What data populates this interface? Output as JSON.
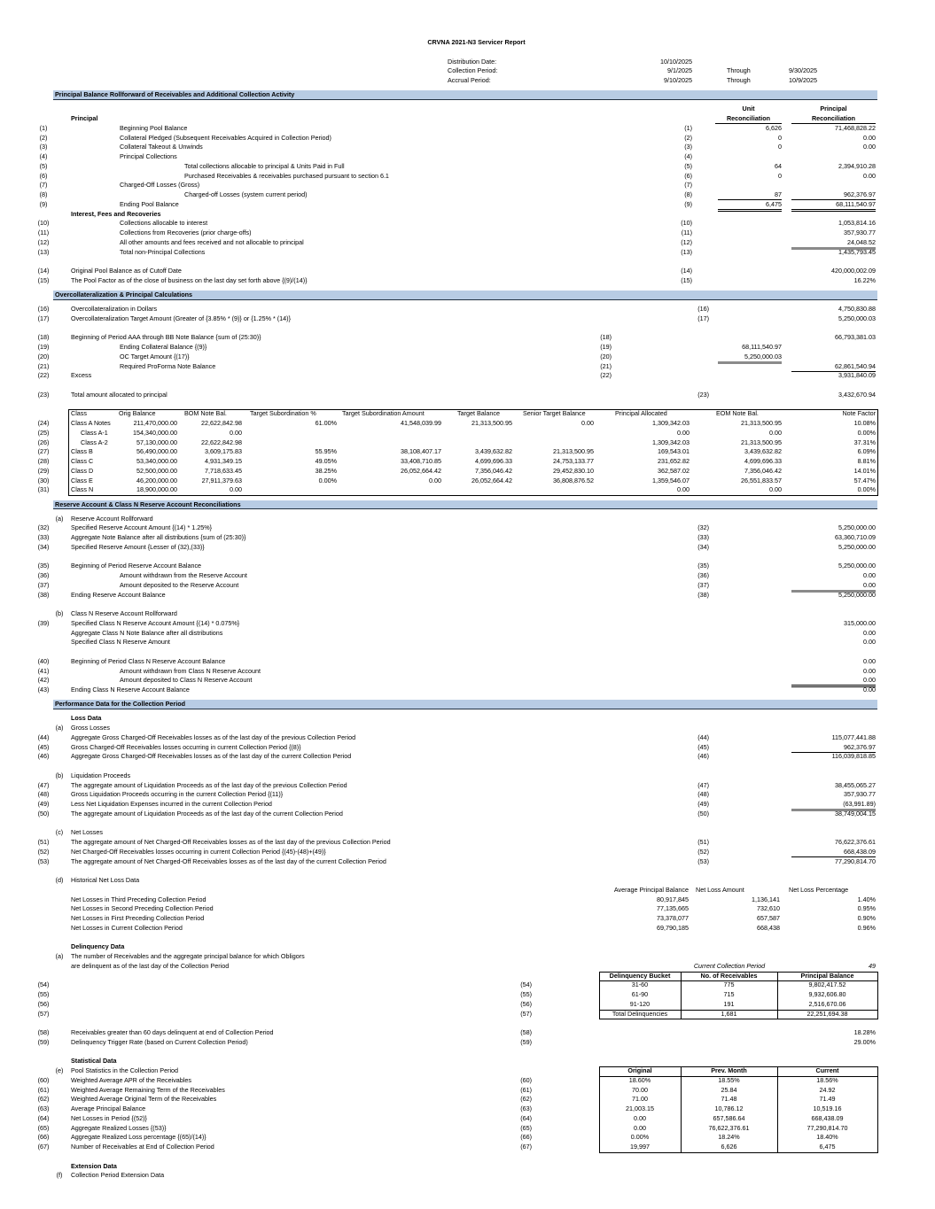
{
  "report_title": "CRVNA 2021-N3 Servicer Report",
  "periods": [
    {
      "label": "Distribution Date:",
      "from": "10/10/2025",
      "through": "",
      "to": ""
    },
    {
      "label": "Collection Period:",
      "from": "9/1/2025",
      "through": "Through",
      "to": "9/30/2025"
    },
    {
      "label": "Accrual Period:",
      "from": "9/10/2025",
      "through": "Through",
      "to": "10/9/2025"
    }
  ],
  "principal_rollforward": {
    "title": "Principal Balance Rollforward of Receivables and Additional Collection Activity",
    "unit_header": [
      "Unit",
      "Reconciliation"
    ],
    "principal_header": [
      "Principal",
      "Reconciliation"
    ],
    "principal_label": "Principal",
    "rows": [
      {
        "n": "(1)",
        "label": "Beginning Pool Balance",
        "ref": "(1)",
        "unit": "6,626",
        "value": "71,468,828.22"
      },
      {
        "n": "(2)",
        "label": "Collateral Pledged (Subsequent Receivables Acquired in Collection Period)",
        "ref": "(2)",
        "unit": "0",
        "value": "0.00"
      },
      {
        "n": "(3)",
        "label": "Collateral Takeout & Unwinds",
        "ref": "(3)",
        "unit": "0",
        "value": "0.00"
      },
      {
        "n": "(4)",
        "label": "Principal Collections",
        "ref": "(4)",
        "unit": "",
        "value": ""
      },
      {
        "n": "(5)",
        "label": "Total collections allocable to principal & Units Paid in Full",
        "ref": "(5)",
        "unit": "64",
        "value": "2,394,910.28"
      },
      {
        "n": "(6)",
        "label": "Purchased Receivables & receivables purchased pursuant to section 6.1",
        "ref": "(6)",
        "unit": "0",
        "value": "0.00"
      },
      {
        "n": "(7)",
        "label": "Charged-Off Losses (Gross)",
        "ref": "(7)",
        "unit": "",
        "value": ""
      },
      {
        "n": "(8)",
        "label": "Charged-off Losses (system current period)",
        "ref": "(8)",
        "unit": "87",
        "value": "962,376.97"
      },
      {
        "n": "(9)",
        "label": "Ending Pool Balance",
        "ref": "(9)",
        "unit": "6,475",
        "value": "68,111,540.97"
      }
    ],
    "interest_label": "Interest, Fees and Recoveries",
    "interest_rows": [
      {
        "n": "(10)",
        "label": "Collections allocable to interest",
        "ref": "(10)",
        "value": "1,053,814.16"
      },
      {
        "n": "(11)",
        "label": "Collections from Recoveries (prior charge-offs)",
        "ref": "(11)",
        "value": "357,930.77"
      },
      {
        "n": "(12)",
        "label": "All other amounts and fees received and not allocable to principal",
        "ref": "(12)",
        "value": "24,048.52"
      },
      {
        "n": "(13)",
        "label": "Total non-Principal Collections",
        "ref": "(13)",
        "value": "1,435,793.45"
      }
    ],
    "pool_rows": [
      {
        "n": "(14)",
        "label": "Original Pool Balance as of Cutoff Date",
        "ref": "(14)",
        "value": "420,000,002.09"
      },
      {
        "n": "(15)",
        "label": "The Pool Factor as of the close of business on the last day set forth above {(9)/(14)}",
        "ref": "(15)",
        "value": "16.22%"
      }
    ]
  },
  "overcollateralization": {
    "title": "Overcollateralization & Principal Calculations",
    "rows": [
      {
        "n": "(16)",
        "label": "Overcollateralization in Dollars",
        "ref": "(16)",
        "value": "4,750,830.88"
      },
      {
        "n": "(17)",
        "label": "Overcollateralization Target Amount (Greater of {3.85% * (9)} or {1.25% * (14)}",
        "ref": "(17)",
        "value": "5,250,000.03"
      }
    ],
    "note_rows": [
      {
        "n": "(18)",
        "label": "Beginning of Period AAA through BB Note Balance {sum of (25:30)}",
        "ref": "(18)",
        "value": "66,793,381.03"
      },
      {
        "n": "(19)",
        "label": "Ending Collateral Balance {(9)}",
        "ref": "(19)",
        "unit": "68,111,540.97"
      },
      {
        "n": "(20)",
        "label": "OC Target Amount {(17)}",
        "ref": "(20)",
        "unit": "5,250,000.03"
      },
      {
        "n": "(21)",
        "label": "Required ProForma Note Balance",
        "ref": "(21)",
        "value": "62,861,540.94"
      },
      {
        "n": "(22)",
        "label": "Excess",
        "ref": "(22)",
        "value": "3,931,840.09"
      }
    ],
    "total_row": {
      "n": "(23)",
      "label": "Total amount allocated to principal",
      "ref": "(23)",
      "value": "3,432,670.94"
    },
    "class_table": {
      "headers": [
        "Class",
        "Orig Balance",
        "BOM Note Bal.",
        "Target Subordination %",
        "Target Subordination Amount",
        "Target Balance",
        "Senior Target Balance",
        "Principal Allocated",
        "EOM Note Bal.",
        "Note Factor"
      ],
      "rows": [
        {
          "n": "(24)",
          "cells": [
            "Class A Notes",
            "211,470,000.00",
            "22,622,842.98",
            "61.00%",
            "41,548,039.99",
            "21,313,500.95",
            "0.00",
            "1,309,342.03",
            "21,313,500.95",
            "10.08%"
          ]
        },
        {
          "n": "(25)",
          "cells": [
            "Class A-1",
            "154,340,000.00",
            "0.00",
            "",
            "",
            "",
            "",
            "0.00",
            "0.00",
            "0.00%"
          ]
        },
        {
          "n": "(26)",
          "cells": [
            "Class A-2",
            "57,130,000.00",
            "22,622,842.98",
            "",
            "",
            "",
            "",
            "1,309,342.03",
            "21,313,500.95",
            "37.31%"
          ]
        },
        {
          "n": "(27)",
          "cells": [
            "Class B",
            "56,490,000.00",
            "3,609,175.83",
            "55.95%",
            "38,108,407.17",
            "3,439,632.82",
            "21,313,500.95",
            "169,543.01",
            "3,439,632.82",
            "6.09%"
          ]
        },
        {
          "n": "(28)",
          "cells": [
            "Class C",
            "53,340,000.00",
            "4,931,349.15",
            "49.05%",
            "33,408,710.85",
            "4,699,696.33",
            "24,753,133.77",
            "231,652.82",
            "4,699,696.33",
            "8.81%"
          ]
        },
        {
          "n": "(29)",
          "cells": [
            "Class D",
            "52,500,000.00",
            "7,718,633.45",
            "38.25%",
            "26,052,664.42",
            "7,356,046.42",
            "29,452,830.10",
            "362,587.02",
            "7,356,046.42",
            "14.01%"
          ]
        },
        {
          "n": "(30)",
          "cells": [
            "Class E",
            "46,200,000.00",
            "27,911,379.63",
            "0.00%",
            "0.00",
            "26,052,664.42",
            "36,808,876.52",
            "1,359,546.07",
            "26,551,833.57",
            "57.47%"
          ]
        },
        {
          "n": "(31)",
          "cells": [
            "Class N",
            "18,900,000.00",
            "0.00",
            "",
            "",
            "",
            "",
            "0.00",
            "0.00",
            "0.00%"
          ]
        }
      ]
    }
  },
  "reserve": {
    "title": "Reserve Account & Class N Reserve Account Reconciliations",
    "a_letter": "(a)",
    "a_title": "Reserve Account Rollforward",
    "a_rows": [
      {
        "n": "(32)",
        "label": "Specified Reserve Account Amount {(14) * 1.25%}",
        "ref": "(32)",
        "value": "5,250,000.00"
      },
      {
        "n": "(33)",
        "label": "Aggregate Note Balance after all distributions {sum of (25:30)}",
        "ref": "(33)",
        "value": "63,360,710.09"
      },
      {
        "n": "(34)",
        "label": "Specified Reserve Amount {Lesser of (32),(33)}",
        "ref": "(34)",
        "value": "5,250,000.00"
      }
    ],
    "a_balance_rows": [
      {
        "n": "(35)",
        "label": "Beginning of Period Reserve Account Balance",
        "ref": "(35)",
        "value": "5,250,000.00"
      },
      {
        "n": "(36)",
        "label": "Amount withdrawn from the Reserve Account",
        "ref": "(36)",
        "value": "0.00"
      },
      {
        "n": "(37)",
        "label": "Amount deposited to the Reserve Account",
        "ref": "(37)",
        "value": "0.00"
      },
      {
        "n": "(38)",
        "label": "Ending Reserve Account Balance",
        "ref": "(38)",
        "value": "5,250,000.00"
      }
    ],
    "b_letter": "(b)",
    "b_title": "Class N Reserve Account Rollforward",
    "b_rows": [
      {
        "n": "(39)",
        "label": "Specified Class N Reserve Account Amount {(14) * 0.075%}",
        "value": "315,000.00"
      },
      {
        "n": "",
        "label": "Aggregate Class N Note Balance after all distributions",
        "value": "0.00"
      },
      {
        "n": "",
        "label": "Specified Class N Reserve Amount",
        "value": "0.00"
      }
    ],
    "b_balance_rows": [
      {
        "n": "(40)",
        "label": "Beginning of Period Class N Reserve Account Balance",
        "value": "0.00"
      },
      {
        "n": "(41)",
        "label": "Amount withdrawn from Class N Reserve Account",
        "value": "0.00"
      },
      {
        "n": "(42)",
        "label": "Amount deposited to Class N Reserve Account",
        "value": "0.00"
      },
      {
        "n": "(43)",
        "label": "Ending Class N Reserve Account Balance",
        "value": "0.00"
      }
    ]
  },
  "performance": {
    "title": "Performance Data for the Collection Period",
    "loss_label": "Loss Data",
    "gross": {
      "letter": "(a)",
      "title": "Gross Losses",
      "rows": [
        {
          "n": "(44)",
          "label": "Aggregate Gross Charged-Off Receivables losses as of the last day of the previous Collection Period",
          "ref": "(44)",
          "value": "115,077,441.88"
        },
        {
          "n": "(45)",
          "label": "Gross Charged-Off Receivables losses occurring in current Collection Period {(8)}",
          "ref": "(45)",
          "value": "962,376.97"
        },
        {
          "n": "(46)",
          "label": "Aggregate Gross Charged-Off Receivables losses as of the last day of the current Collection Period",
          "ref": "(46)",
          "value": "116,039,818.85"
        }
      ]
    },
    "liquidation": {
      "letter": "(b)",
      "title": "Liquidation Proceeds",
      "rows": [
        {
          "n": "(47)",
          "label": "The aggregate amount of Liquidation Proceeds as of the last day of the previous Collection Period",
          "ref": "(47)",
          "value": "38,455,065.27"
        },
        {
          "n": "(48)",
          "label": "Gross Liquidation Proceeds occurring in the current Collection Period {(11)}",
          "ref": "(48)",
          "value": "357,930.77"
        },
        {
          "n": "(49)",
          "label": "Less Net Liquidation Expenses incurred in the current Collection Period",
          "ref": "(49)",
          "value": "(63,991.89)"
        },
        {
          "n": "(50)",
          "label": "The aggregate amount of Liquidation Proceeds as of the last day of the current Collection Period",
          "ref": "(50)",
          "value": "38,749,004.15"
        }
      ]
    },
    "net": {
      "letter": "(c)",
      "title": "Net Losses",
      "rows": [
        {
          "n": "(51)",
          "label": "The aggregate amount of Net Charged-Off Receivables losses as of the last day of the previous Collection Period",
          "ref": "(51)",
          "value": "76,622,376.61"
        },
        {
          "n": "(52)",
          "label": "Net Charged-Off Receivables losses occurring in current Collection Period {(45)-(48)+(49)}",
          "ref": "(52)",
          "value": "668,438.09"
        },
        {
          "n": "(53)",
          "label": "The aggregate amount of Net Charged-Off Receivables losses as of the last day of the current Collection Period",
          "ref": "(53)",
          "value": "77,290,814.70"
        }
      ]
    },
    "historical": {
      "letter": "(d)",
      "title": "Historical Net Loss Data",
      "headers": [
        "Average Principal Balance",
        "Net Loss Amount",
        "Net Loss Percentage"
      ],
      "rows": [
        {
          "label": "Net Losses in Third Preceding Collection Period",
          "avg": "80,917,845",
          "amount": "1,136,141",
          "pct": "1.40%"
        },
        {
          "label": "Net Losses in Second Preceding Collection Period",
          "avg": "77,135,665",
          "amount": "732,610",
          "pct": "0.95%"
        },
        {
          "label": "Net Losses in First Preceding Collection Period",
          "avg": "73,378,077",
          "amount": "657,587",
          "pct": "0.90%"
        },
        {
          "label": "Net Losses in Current Collection Period",
          "avg": "69,790,185",
          "amount": "668,438",
          "pct": "0.96%"
        }
      ]
    },
    "delinquency": {
      "label": "Delinquency Data",
      "letter": "(a)",
      "text": [
        "The number of Receivables and the aggregate principal balance for which Obligors",
        "are delinquent as of the last day of the Collection Period"
      ],
      "period_label": "Current Collection Period",
      "period_number": "49",
      "headers": [
        "Delinquency Bucket",
        "No. of Receivables",
        "Principal Balance"
      ],
      "rows": [
        {
          "n": "(54)",
          "ref": "(54)",
          "bucket": "31-60",
          "count": "775",
          "balance": "9,802,417.52"
        },
        {
          "n": "(55)",
          "ref": "(55)",
          "bucket": "61-90",
          "count": "715",
          "balance": "9,932,606.80"
        },
        {
          "n": "(56)",
          "ref": "(56)",
          "bucket": "91-120",
          "count": "191",
          "balance": "2,516,670.06"
        },
        {
          "n": "(57)",
          "ref": "(57)",
          "bucket": "Total Delinquencies",
          "count": "1,681",
          "balance": "22,251,694.38"
        }
      ],
      "ratio_rows": [
        {
          "n": "(58)",
          "label": "Receivables greater than 60 days delinquent at end of Collection Period",
          "ref": "(58)",
          "value": "18.28%"
        },
        {
          "n": "(59)",
          "label": "Delinquency Trigger Rate (based on Current Collection Period)",
          "ref": "(59)",
          "value": "29.00%"
        }
      ]
    },
    "statistical": {
      "label": "Statistical Data",
      "letter": "(e)",
      "title": "Pool Statistics in the Collection Period",
      "headers": [
        "Original",
        "Prev. Month",
        "Current"
      ],
      "rows": [
        {
          "n": "(60)",
          "label": "Weighted Average APR of the Receivables",
          "ref": "(60)",
          "original": "18.60%",
          "prev": "18.55%",
          "current": "18.56%"
        },
        {
          "n": "(61)",
          "label": "Weighted Average Remaining Term of the Receivables",
          "ref": "(61)",
          "original": "70.00",
          "prev": "25.84",
          "current": "24.92"
        },
        {
          "n": "(62)",
          "label": "Weighted Average Original Term of the Receivables",
          "ref": "(62)",
          "original": "71.00",
          "prev": "71.48",
          "current": "71.49"
        },
        {
          "n": "(63)",
          "label": "Average Principal Balance",
          "ref": "(63)",
          "original": "21,003.15",
          "prev": "10,786.12",
          "current": "10,519.16"
        },
        {
          "n": "(64)",
          "label": "Net Losses in Period {(52)}",
          "ref": "(64)",
          "original": "0.00",
          "prev": "657,586.64",
          "current": "668,438.09"
        },
        {
          "n": "(65)",
          "label": "Aggregate Realized Losses {(53)}",
          "ref": "(65)",
          "original": "0.00",
          "prev": "76,622,376.61",
          "current": "77,290,814.70"
        },
        {
          "n": "(66)",
          "label": "Aggregate Realized Loss percentage {(65)/(14)}",
          "ref": "(66)",
          "original": "0.00%",
          "prev": "18.24%",
          "current": "18.40%"
        },
        {
          "n": "(67)",
          "label": "Number of Receivables at End of Collection Period",
          "ref": "(67)",
          "original": "19,997",
          "prev": "6,626",
          "current": "6,475"
        }
      ]
    },
    "extension": {
      "label": "Extension Data",
      "letter": "(f)",
      "title": "Collection Period Extension Data"
    }
  }
}
